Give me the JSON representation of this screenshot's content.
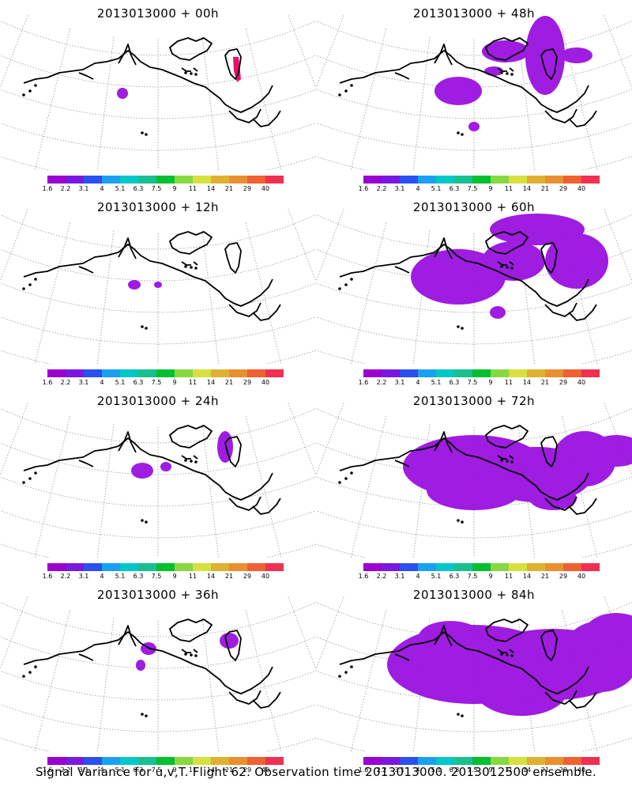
{
  "panels": [
    {
      "title": "2013013000 + 00h",
      "level": 0
    },
    {
      "title": "2013013000 + 48h",
      "level": 4
    },
    {
      "title": "2013013000 + 12h",
      "level": 1
    },
    {
      "title": "2013013000 + 60h",
      "level": 5
    },
    {
      "title": "2013013000 + 24h",
      "level": 2
    },
    {
      "title": "2013013000 + 72h",
      "level": 6
    },
    {
      "title": "2013013000 + 36h",
      "level": 3
    },
    {
      "title": "2013013000 + 84h",
      "level": 7
    }
  ],
  "colorbar": {
    "colors": [
      "#9a00d0",
      "#7a18e0",
      "#2a50f0",
      "#1aa0f0",
      "#00c8c8",
      "#18c090",
      "#00c030",
      "#88d840",
      "#d8e040",
      "#e0b030",
      "#e89030",
      "#f06030",
      "#f03050"
    ],
    "ticks": [
      "1.6",
      "2.2",
      "3.1",
      "4",
      "5.1",
      "6.3",
      "7.5",
      "9",
      "11",
      "14",
      "21",
      "29",
      "40"
    ]
  },
  "map": {
    "coast_color": "#000000",
    "grid_color": "#999999",
    "signal_color": "#9a10e0",
    "hot_color": "#e81070"
  },
  "footer": "Signal Variance for u,v,T. Flight 62. Observation time 2013013000. 2013012500 ensemble."
}
